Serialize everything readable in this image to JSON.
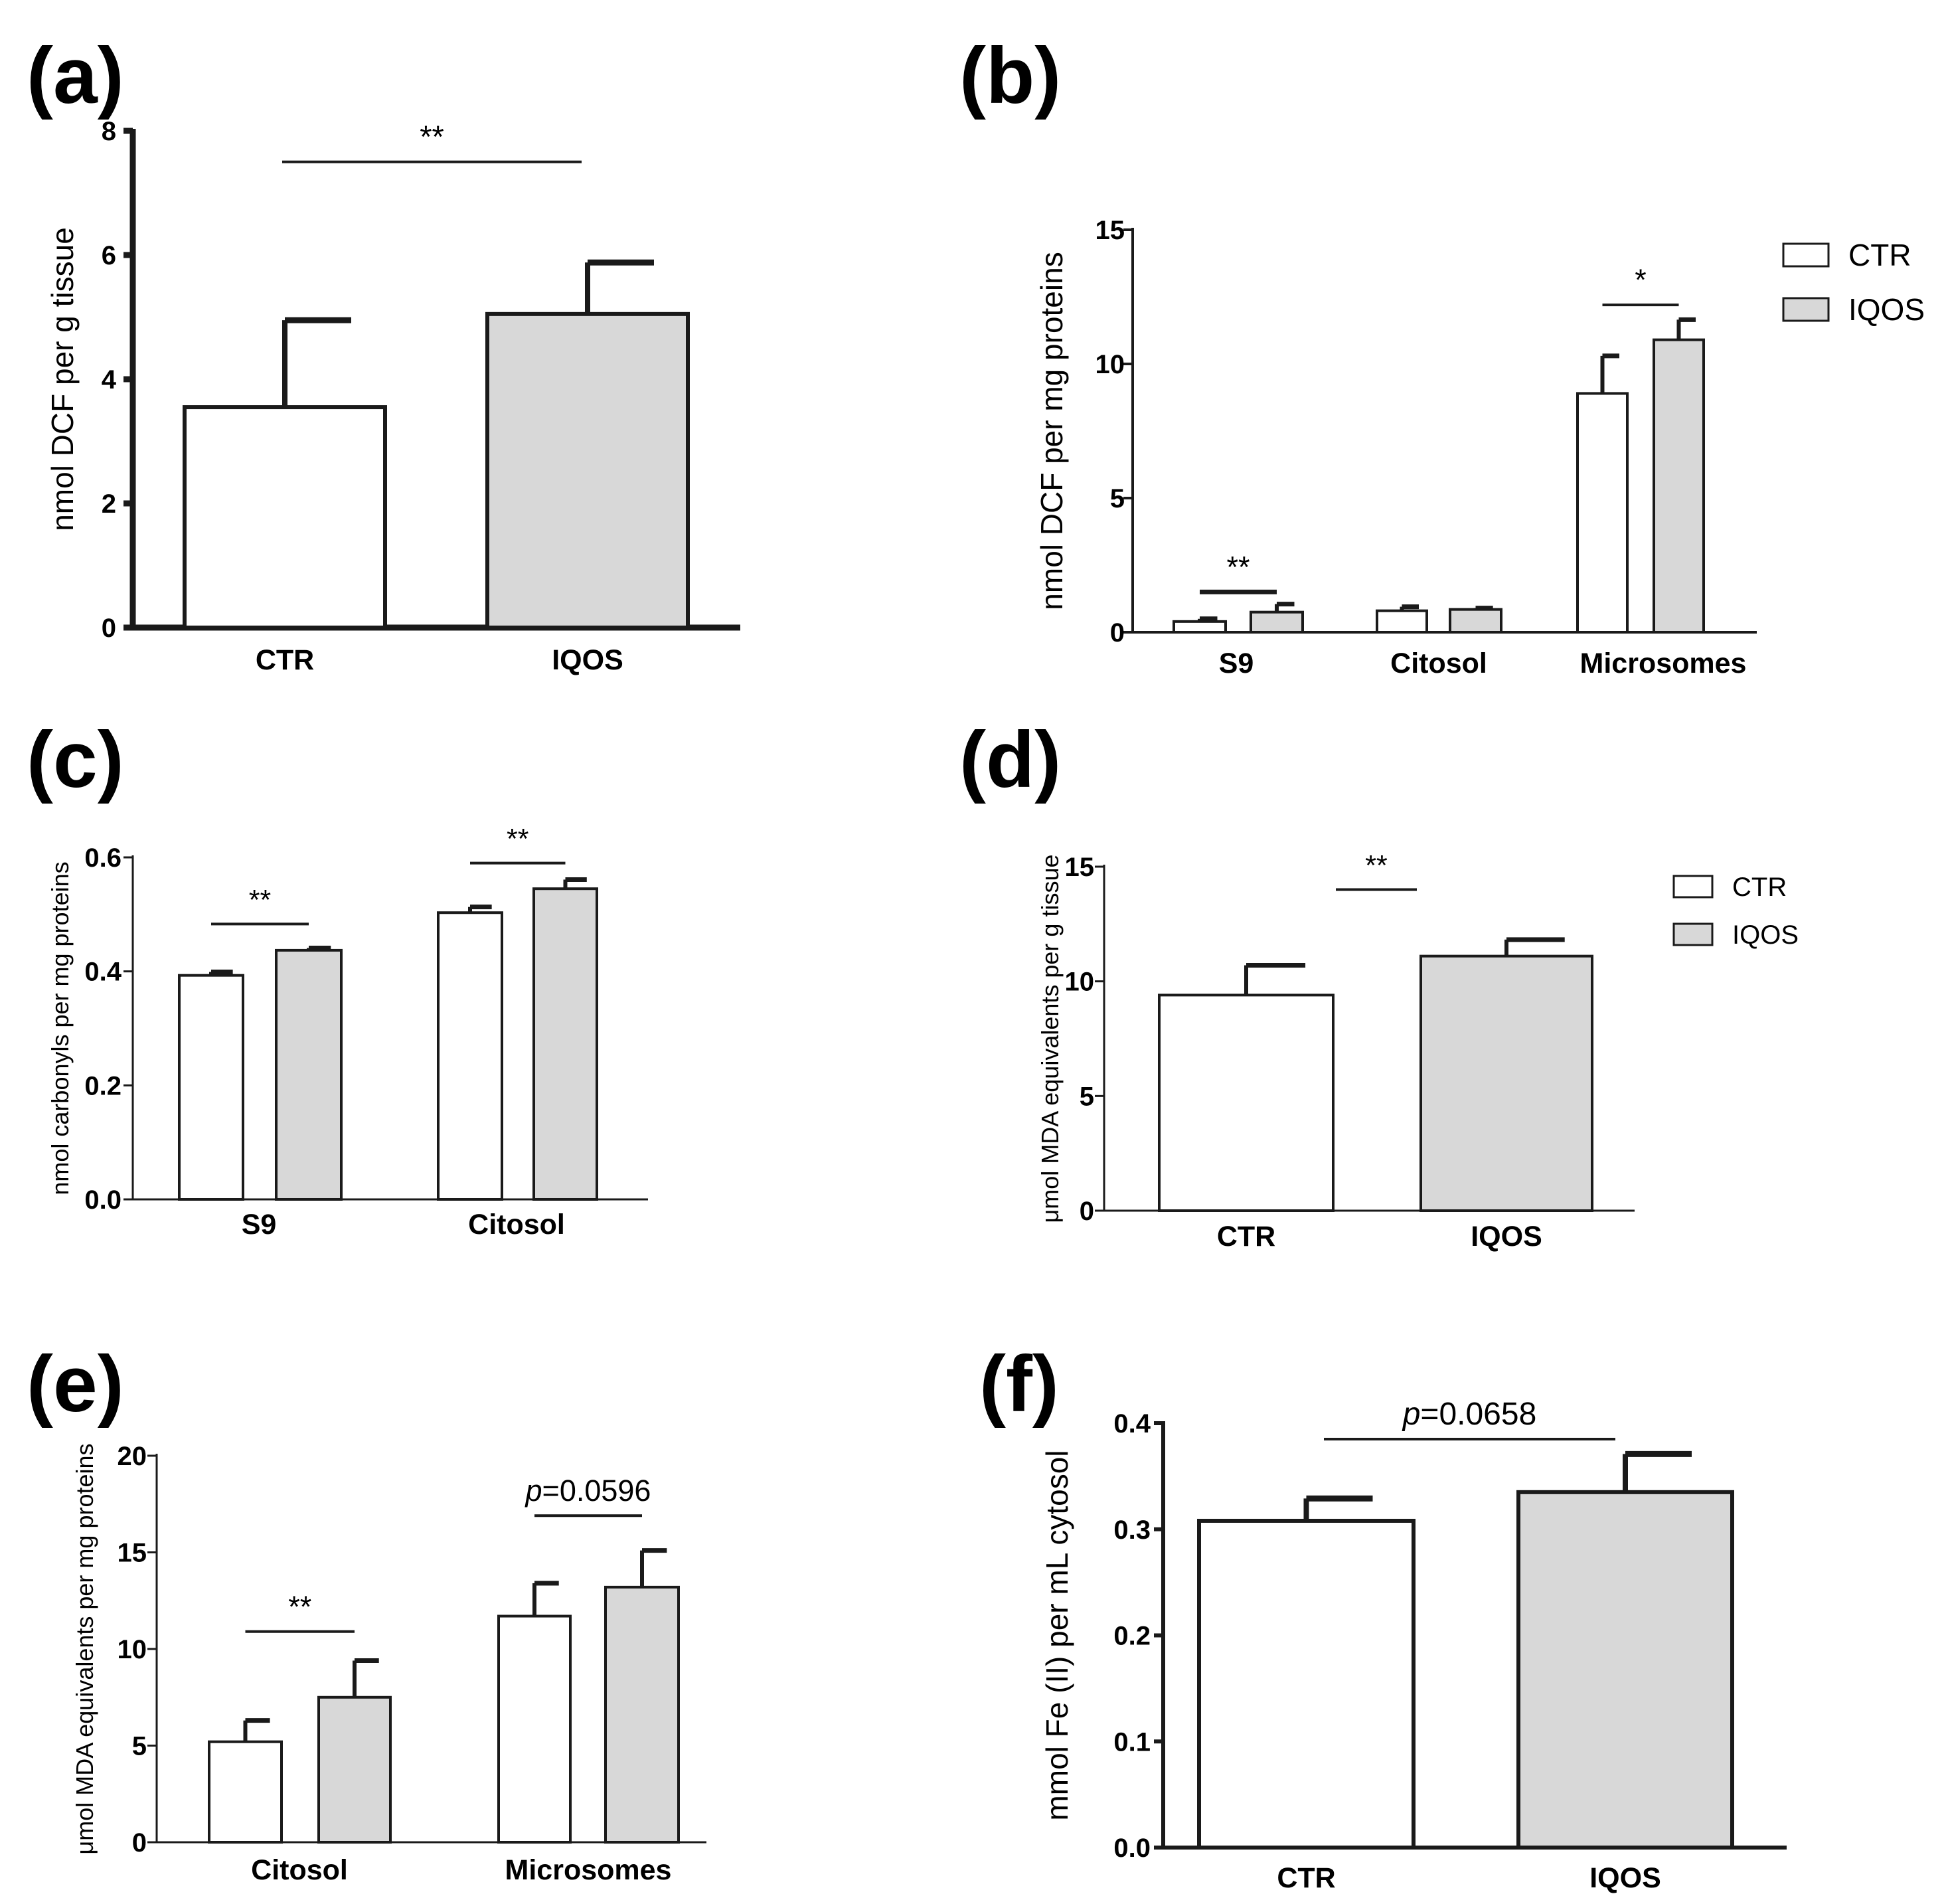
{
  "figure": {
    "background": "#ffffff",
    "ctr_color": "#ffffff",
    "iqos_color": "#d8d8d8",
    "stroke": "#1a1a1a"
  },
  "legend": {
    "ctr": "CTR",
    "iqos": "IQOS"
  },
  "chart_data": [
    {
      "panel": "(a)",
      "type": "bar",
      "ylabel": "nmol DCF per g tissue",
      "ylim": [
        0,
        8
      ],
      "yticks": [
        0,
        2,
        4,
        6,
        8
      ],
      "tick_labels": [
        "0",
        "2",
        "4",
        "6",
        "8"
      ],
      "categories": [
        "CTR",
        "IQOS"
      ],
      "values": [
        3.55,
        5.05
      ],
      "errors": [
        1.4,
        0.83
      ],
      "colors": [
        "ctr",
        "iqos"
      ],
      "annotations": [
        {
          "text": "**",
          "from": 0,
          "to": 1,
          "y": 7.5
        }
      ]
    },
    {
      "panel": "(b)",
      "type": "bar",
      "ylabel": "nmol DCF per mg proteins",
      "ylim": [
        0,
        15
      ],
      "yticks": [
        0,
        5,
        10,
        15
      ],
      "tick_labels": [
        "0",
        "5",
        "10",
        "15"
      ],
      "categories": [
        "S9",
        "Citosol",
        "Microsomes"
      ],
      "series": [
        {
          "name": "CTR",
          "values": [
            0.4,
            0.8,
            8.9
          ],
          "errors": [
            0.1,
            0.15,
            1.4
          ]
        },
        {
          "name": "IQOS",
          "values": [
            0.75,
            0.85,
            10.9
          ],
          "errors": [
            0.3,
            0.05,
            0.75
          ]
        }
      ],
      "legend": true,
      "annotations": [
        {
          "text": "**",
          "group": 0,
          "y": 1.5
        },
        {
          "text": "*",
          "group": 2,
          "y": 12.2
        }
      ]
    },
    {
      "panel": "(c)",
      "type": "bar",
      "ylabel": "nmol carbonyls per mg proteins",
      "ylim": [
        0,
        0.6
      ],
      "yticks": [
        0,
        0.2,
        0.4,
        0.6
      ],
      "tick_labels": [
        "0.0",
        "0.2",
        "0.4",
        "0.6"
      ],
      "categories": [
        "S9",
        "Citosol"
      ],
      "series": [
        {
          "name": "CTR",
          "values": [
            0.393,
            0.503
          ],
          "errors": [
            0.006,
            0.01
          ]
        },
        {
          "name": "IQOS",
          "values": [
            0.437,
            0.545
          ],
          "errors": [
            0.004,
            0.016
          ]
        }
      ],
      "annotations": [
        {
          "text": "**",
          "group": 0,
          "y": 0.483
        },
        {
          "text": "**",
          "group": 1,
          "y": 0.59
        }
      ]
    },
    {
      "panel": "(d)",
      "type": "bar",
      "ylabel": "μmol MDA equivalents per g tissue",
      "ylim": [
        0,
        15
      ],
      "yticks": [
        0,
        5,
        10,
        15
      ],
      "tick_labels": [
        "0",
        "5",
        "10",
        "15"
      ],
      "categories": [
        "CTR",
        "IQOS"
      ],
      "values": [
        9.4,
        11.1
      ],
      "errors": [
        1.3,
        0.72
      ],
      "colors": [
        "ctr",
        "iqos"
      ],
      "legend": true,
      "annotations": [
        {
          "text": "**",
          "from": 0,
          "to": 1,
          "y": 14.0
        }
      ]
    },
    {
      "panel": "(e)",
      "type": "bar",
      "ylabel": "μmol MDA equivalents per mg proteins",
      "ylim": [
        0,
        20
      ],
      "yticks": [
        0,
        5,
        10,
        15,
        20
      ],
      "tick_labels": [
        "0",
        "5",
        "10",
        "15",
        "20"
      ],
      "categories": [
        "Citosol",
        "Microsomes"
      ],
      "series": [
        {
          "name": "CTR",
          "values": [
            5.2,
            11.7
          ],
          "errors": [
            1.1,
            1.7
          ]
        },
        {
          "name": "IQOS",
          "values": [
            7.5,
            13.2
          ],
          "errors": [
            1.9,
            1.9
          ]
        }
      ],
      "annotations": [
        {
          "text": "**",
          "group": 0,
          "y": 10.9
        },
        {
          "text": "=0.0596",
          "italic_prefix": "p",
          "group": 1,
          "y": 16.9
        }
      ]
    },
    {
      "panel": "(f)",
      "type": "bar",
      "ylabel": "mmol Fe (II) per mL cytosol",
      "ylim": [
        0,
        0.4
      ],
      "yticks": [
        0,
        0.1,
        0.2,
        0.3,
        0.4
      ],
      "tick_labels": [
        "0.0",
        "0.1",
        "0.2",
        "0.3",
        "0.4"
      ],
      "categories": [
        "CTR",
        "IQOS"
      ],
      "values": [
        0.308,
        0.335
      ],
      "errors": [
        0.021,
        0.036
      ],
      "colors": [
        "ctr",
        "iqos"
      ],
      "annotations": [
        {
          "text": "=0.0658",
          "italic_prefix": "p",
          "from": 0,
          "to": 1,
          "y": 0.385
        }
      ]
    }
  ]
}
